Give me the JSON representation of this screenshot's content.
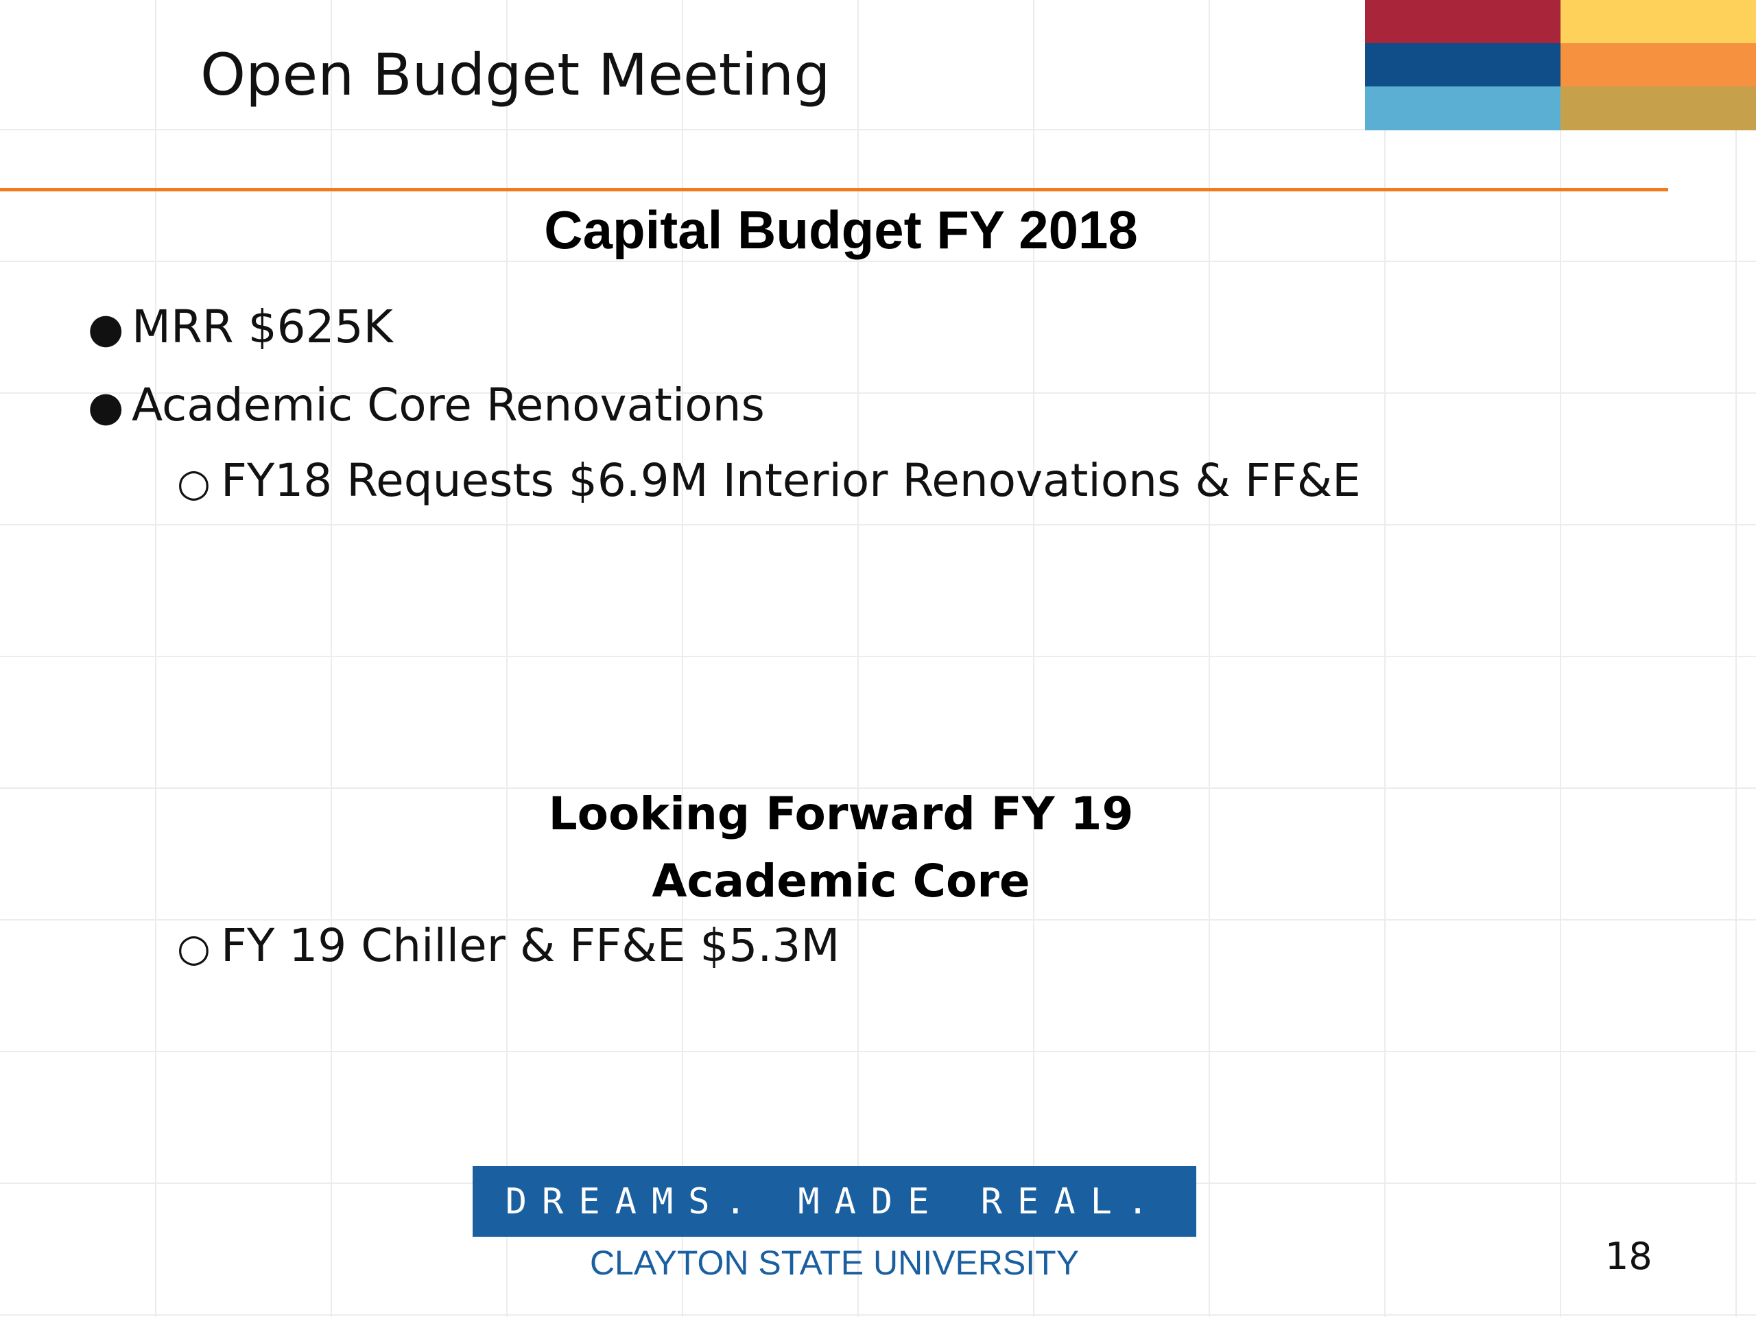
{
  "slide": {
    "title": "Open Budget Meeting",
    "page_number": "18"
  },
  "colors": {
    "divider": "#f07a1e",
    "banner_bg": "#1a5fa0",
    "university_text": "#1a5fa0",
    "grid_crimson": "#a8253a",
    "grid_yellow": "#fdd15a",
    "grid_navy": "#0f4e88",
    "grid_orange": "#f5913f",
    "grid_lightblue": "#5aafd3",
    "grid_gold": "#c6a04a"
  },
  "capital_budget": {
    "heading": "Capital Budget FY 2018",
    "bullets": [
      {
        "marker": "●",
        "text": "MRR $625K"
      },
      {
        "marker": "●",
        "text": "Academic Core Renovations"
      }
    ],
    "sub_bullets": [
      {
        "marker": "○",
        "text": "FY18 Requests $6.9M Interior Renovations & FF&E"
      }
    ]
  },
  "looking_forward": {
    "heading_line1": "Looking Forward FY 19",
    "heading_line2": "Academic Core",
    "sub_bullets": [
      {
        "marker": "○",
        "text": "FY 19 Chiller & FF&E $5.3M"
      }
    ]
  },
  "footer": {
    "banner_text": "DREAMS. MADE REAL.",
    "university": "CLAYTON STATE UNIVERSITY"
  }
}
